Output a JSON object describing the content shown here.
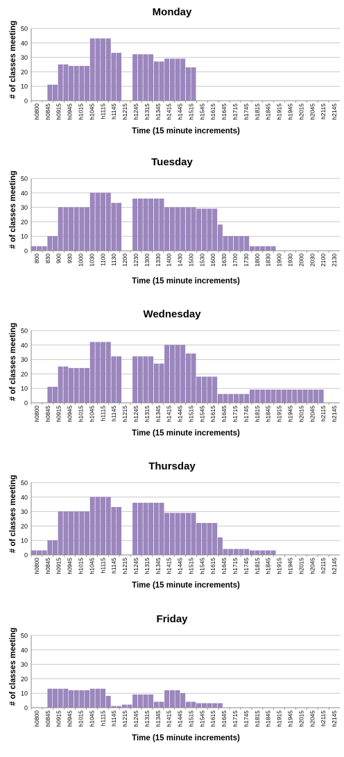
{
  "colors": {
    "bar": "#9b86bd",
    "bar_stroke": "#8a74b0",
    "grid": "#c8c8c8",
    "axis": "#888888",
    "text": "#000000"
  },
  "chart_data": [
    {
      "type": "bar",
      "title": "Monday",
      "xlabel": "Time (15 minute increments)",
      "ylabel": "# of classes meeting",
      "ylim": [
        0,
        50
      ],
      "yticks": [
        0,
        10,
        20,
        30,
        40,
        50
      ],
      "grid": true,
      "tick_labels": [
        "h0800",
        "h0845",
        "h0915",
        "h0945",
        "h1015",
        "h1045",
        "h1115",
        "h1145",
        "h1215",
        "h1245",
        "h1315",
        "h1345",
        "h1415",
        "h1445",
        "h1515",
        "h1545",
        "h1615",
        "h1645",
        "h1715",
        "h1745",
        "h1815",
        "h1845",
        "h1915",
        "h1945",
        "h2015",
        "h2045",
        "h2115",
        "h2145"
      ],
      "values": [
        0,
        0,
        0,
        11,
        11,
        25,
        25,
        24,
        24,
        24,
        24,
        43,
        43,
        43,
        43,
        33,
        33,
        0,
        0,
        32,
        32,
        32,
        32,
        27,
        27,
        29,
        29,
        29,
        29,
        23,
        23,
        0,
        0,
        0,
        0,
        0,
        0,
        0,
        0,
        0,
        0,
        0,
        0,
        0,
        0,
        0,
        0,
        0,
        0,
        0,
        0,
        0,
        0,
        0,
        0,
        0,
        0,
        0
      ]
    },
    {
      "type": "bar",
      "title": "Tuesday",
      "xlabel": "Time (15 minute increments)",
      "ylabel": "# of classes meeting",
      "ylim": [
        0,
        50
      ],
      "yticks": [
        0,
        10,
        20,
        30,
        40,
        50
      ],
      "grid": true,
      "tick_labels": [
        "800",
        "830",
        "900",
        "930",
        "1000",
        "1030",
        "1100",
        "1130",
        "1200",
        "1230",
        "1300",
        "1330",
        "1400",
        "1430",
        "1500",
        "1530",
        "1600",
        "1630",
        "1700",
        "1730",
        "1800",
        "1830",
        "1900",
        "1930",
        "2000",
        "2030",
        "2100",
        "2130"
      ],
      "values": [
        3,
        3,
        3,
        10,
        10,
        30,
        30,
        30,
        30,
        30,
        30,
        40,
        40,
        40,
        40,
        33,
        33,
        0,
        0,
        36,
        36,
        36,
        36,
        36,
        36,
        30,
        30,
        30,
        30,
        30,
        30,
        29,
        29,
        29,
        29,
        18,
        10,
        10,
        10,
        10,
        10,
        3,
        3,
        3,
        3,
        3,
        0,
        0,
        0,
        0,
        0,
        0,
        0,
        0,
        0,
        0,
        0,
        0
      ]
    },
    {
      "type": "bar",
      "title": "Wednesday",
      "xlabel": "Time (15 minute increments)",
      "ylabel": "# of classes meeting",
      "ylim": [
        0,
        50
      ],
      "yticks": [
        0,
        10,
        20,
        30,
        40,
        50
      ],
      "grid": true,
      "tick_labels": [
        "h0800",
        "h0845",
        "h0915",
        "h0945",
        "h1015",
        "h1045",
        "h1115",
        "h1145",
        "h1215",
        "h1245",
        "h1315",
        "h1345",
        "h1415",
        "h1445",
        "h1515",
        "h1545",
        "h1615",
        "h1645",
        "h1715",
        "h1745",
        "h1815",
        "h1845",
        "h1915",
        "h1945",
        "h2015",
        "h2045",
        "h2115",
        "h2145"
      ],
      "values": [
        0,
        0,
        0,
        11,
        11,
        25,
        25,
        24,
        24,
        24,
        24,
        42,
        42,
        42,
        42,
        32,
        32,
        0,
        0,
        32,
        32,
        32,
        32,
        27,
        27,
        40,
        40,
        40,
        40,
        34,
        34,
        18,
        18,
        18,
        18,
        6,
        6,
        6,
        6,
        6,
        6,
        9,
        9,
        9,
        9,
        9,
        9,
        9,
        9,
        9,
        9,
        9,
        9,
        9,
        9,
        0,
        0,
        0
      ]
    },
    {
      "type": "bar",
      "title": "Thursday",
      "xlabel": "Time (15 minute increments)",
      "ylabel": "# of classes meeting",
      "ylim": [
        0,
        50
      ],
      "yticks": [
        0,
        10,
        20,
        30,
        40,
        50
      ],
      "grid": true,
      "tick_labels": [
        "h0800",
        "h0845",
        "h0915",
        "h0945",
        "h1015",
        "h1045",
        "h1115",
        "h1145",
        "h1215",
        "h1245",
        "h1315",
        "h1345",
        "h1415",
        "h1445",
        "h1515",
        "h1545",
        "h1615",
        "h1645",
        "h1715",
        "h1745",
        "h1815",
        "h1845",
        "h1915",
        "h1945",
        "h2015",
        "h2045",
        "h2115",
        "h2145"
      ],
      "values": [
        3,
        3,
        3,
        10,
        10,
        30,
        30,
        30,
        30,
        30,
        30,
        40,
        40,
        40,
        40,
        33,
        33,
        0,
        0,
        36,
        36,
        36,
        36,
        36,
        36,
        29,
        29,
        29,
        29,
        29,
        29,
        22,
        22,
        22,
        22,
        12,
        4,
        4,
        4,
        4,
        4,
        3,
        3,
        3,
        3,
        3,
        0,
        0,
        0,
        0,
        0,
        0,
        0,
        0,
        0,
        0,
        0,
        0
      ]
    },
    {
      "type": "bar",
      "title": "Friday",
      "xlabel": "Time (15 minute increments)",
      "ylabel": "# of classes meeting",
      "ylim": [
        0,
        50
      ],
      "yticks": [
        0,
        10,
        20,
        30,
        40,
        50
      ],
      "grid": true,
      "tick_labels": [
        "h0800",
        "h0845",
        "h0915",
        "h0945",
        "h1015",
        "h1045",
        "h1115",
        "h1145",
        "h1215",
        "h1245",
        "h1315",
        "h1345",
        "h1415",
        "h1445",
        "h1515",
        "h1545",
        "h1615",
        "h1645",
        "h1715",
        "h1745",
        "h1815",
        "h1845",
        "h1915",
        "h1945",
        "h2015",
        "h2045",
        "h2115",
        "h2145"
      ],
      "values": [
        0,
        0,
        0,
        13,
        13,
        13,
        13,
        12,
        12,
        12,
        12,
        13,
        13,
        13,
        8,
        1,
        1,
        2,
        2,
        9,
        9,
        9,
        9,
        4,
        4,
        12,
        12,
        12,
        10,
        4,
        4,
        3,
        3,
        3,
        3,
        3,
        0,
        0,
        0,
        0,
        0,
        0,
        0,
        0,
        0,
        0,
        0,
        0,
        0,
        0,
        0,
        0,
        0,
        0,
        0,
        0,
        0,
        0
      ]
    }
  ]
}
